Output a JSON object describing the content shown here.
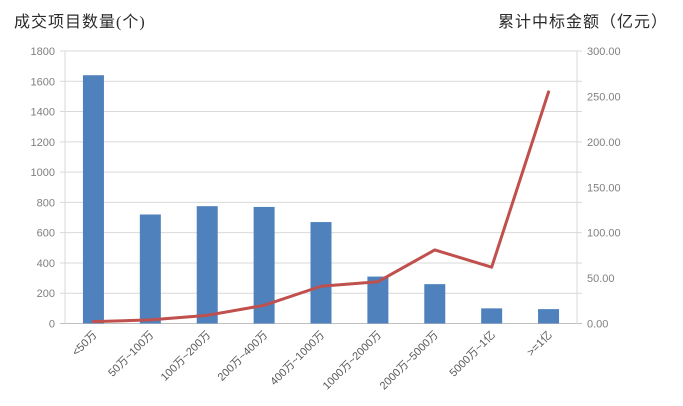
{
  "titles": {
    "left": "成交项目数量(个)",
    "right": "累计中标金额（亿元）"
  },
  "chart_data": {
    "type": "combo-bar-line",
    "title": "",
    "legend": "none",
    "grid": true,
    "categories": [
      "<50万",
      "50万~100万",
      "100万~200万",
      "200万~400万",
      "400万~1000万",
      "1000万~2000万",
      "2000万~5000万",
      "5000万~1亿",
      ">=1亿"
    ],
    "series": [
      {
        "name": "成交项目数量(个)",
        "type": "bar",
        "axis": "left",
        "color": "#4F81BD",
        "values": [
          1640,
          720,
          775,
          770,
          670,
          310,
          260,
          100,
          95
        ]
      },
      {
        "name": "累计中标金额（亿元）",
        "type": "line",
        "axis": "right",
        "color": "#C0504D",
        "values": [
          2,
          4,
          9,
          20,
          41,
          46,
          81,
          62,
          255
        ]
      }
    ],
    "left_axis": {
      "label": "成交项目数量(个)",
      "min": 0,
      "max": 1800,
      "step": 200,
      "ticks": [
        "0",
        "200",
        "400",
        "600",
        "800",
        "1000",
        "1200",
        "1400",
        "1600",
        "1800"
      ]
    },
    "right_axis": {
      "label": "累计中标金额（亿元）",
      "min": 0,
      "max": 300,
      "step": 50,
      "ticks": [
        "0.00",
        "50.00",
        "100.00",
        "150.00",
        "200.00",
        "250.00",
        "300.00"
      ]
    },
    "colors": {
      "gridline": "#D9D9D9",
      "plot_border": "#D9D9D9",
      "baseline": "#BFBFBF",
      "axis_text": "#808080",
      "category_text": "#595959"
    }
  }
}
